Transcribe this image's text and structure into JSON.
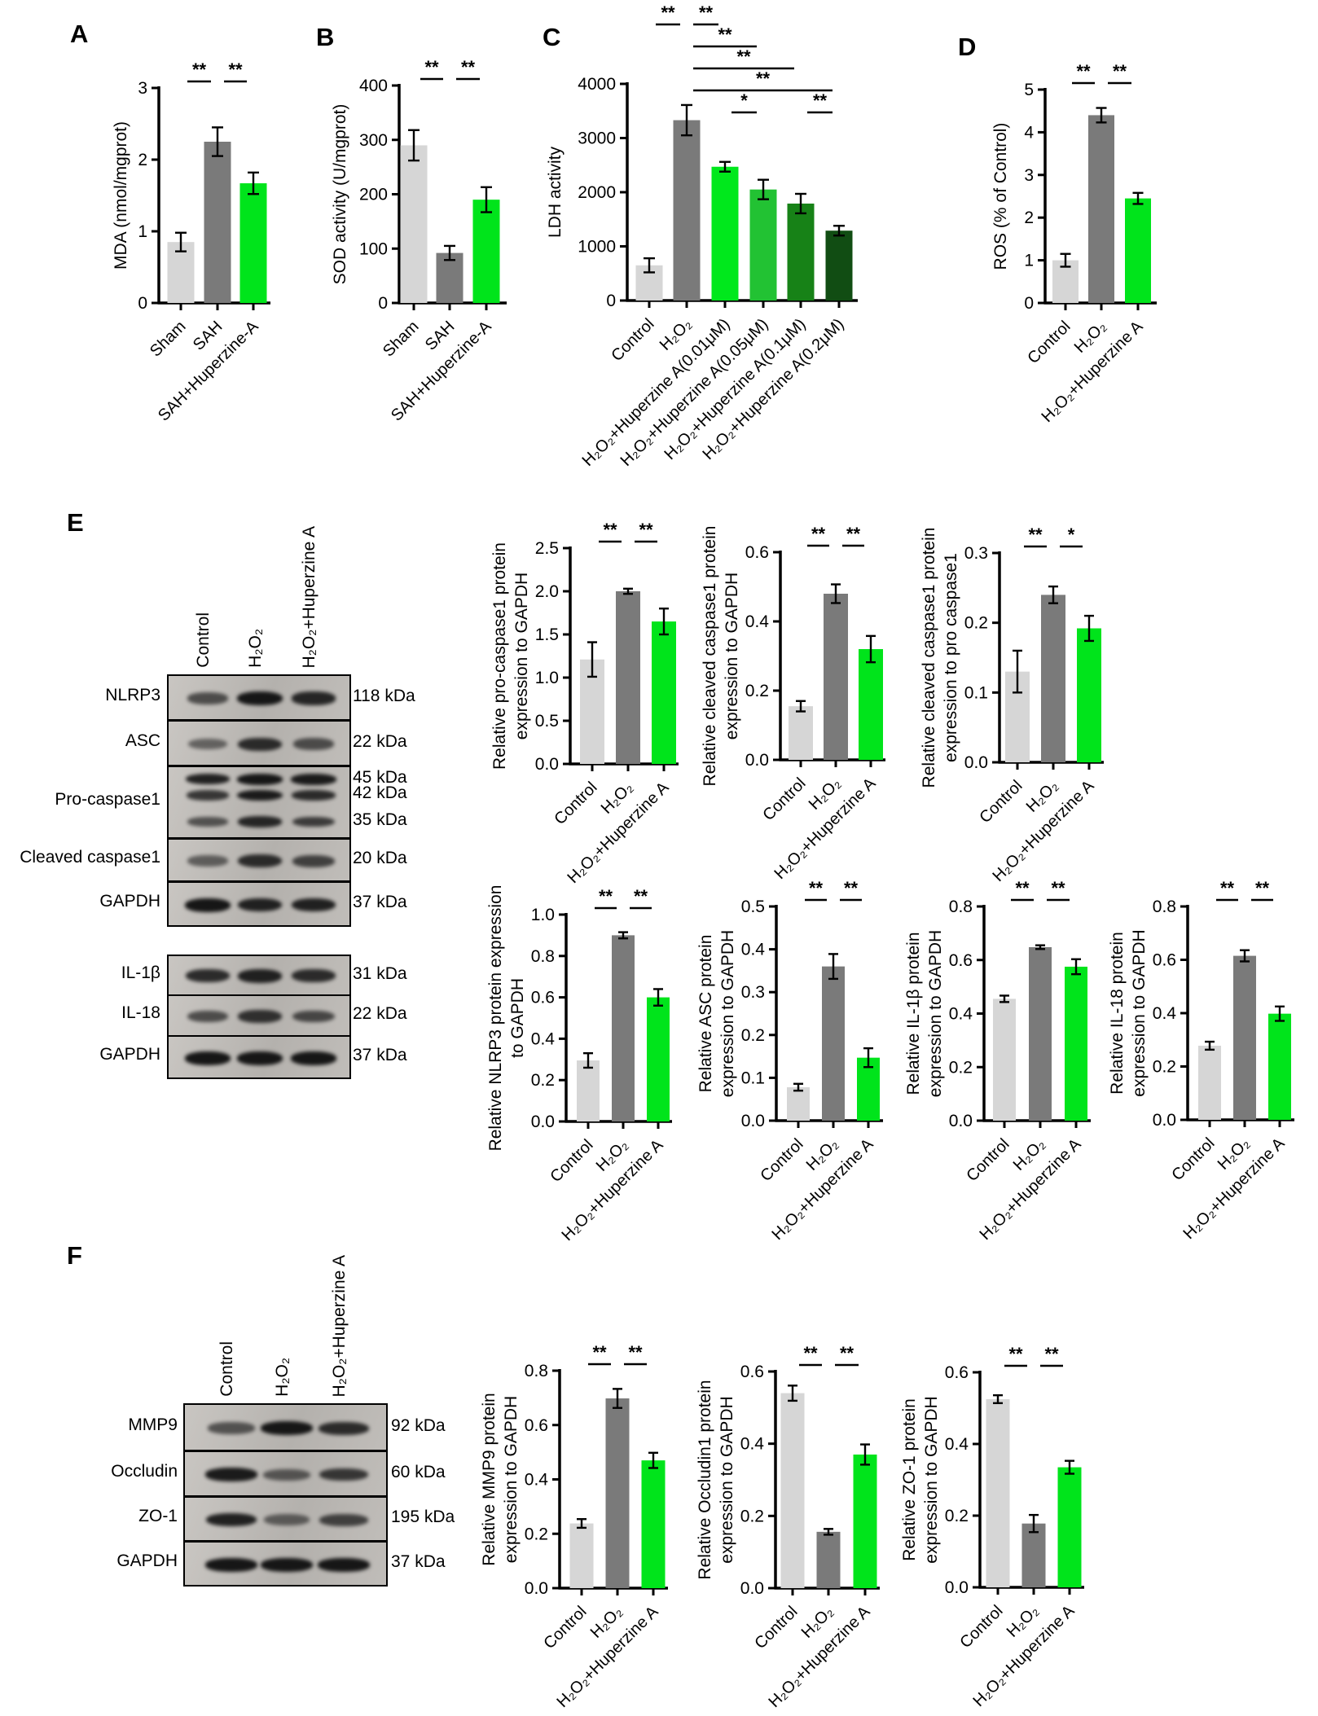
{
  "panel_letters": [
    "A",
    "B",
    "C",
    "D",
    "E",
    "F"
  ],
  "colors": {
    "bar_light_gray": "#d6d6d6",
    "bar_dark_gray": "#7a7a7a",
    "bar_green": "#00e41b",
    "axis_black": "#000000"
  },
  "chart_data": [
    {
      "id": "A",
      "type": "bar",
      "ylabel_lines": [
        "MDA (nmol/mgprot)"
      ],
      "categories": [
        "Sham",
        "SAH",
        "SAH+Huperzine-A"
      ],
      "values": [
        0.85,
        2.25,
        1.67
      ],
      "errors": [
        0.13,
        0.2,
        0.15
      ],
      "ylim": [
        0,
        3
      ],
      "yticks": [
        "0",
        "1",
        "2",
        "3"
      ],
      "bar_colors": [
        "#d6d6d6",
        "#7a7a7a",
        "#00e41b"
      ],
      "sig": [
        {
          "a": 0,
          "b": 1,
          "label": "**"
        },
        {
          "a": 1,
          "b": 2,
          "label": "**"
        }
      ]
    },
    {
      "id": "B",
      "type": "bar",
      "ylabel_lines": [
        "SOD activity (U/mgprot)"
      ],
      "categories": [
        "Sham",
        "SAH",
        "SAH+Huperzine-A"
      ],
      "values": [
        290,
        92,
        190
      ],
      "errors": [
        28,
        13,
        23
      ],
      "ylim": [
        0,
        400
      ],
      "yticks": [
        "0",
        "100",
        "200",
        "300",
        "400"
      ],
      "bar_colors": [
        "#d6d6d6",
        "#7a7a7a",
        "#00e41b"
      ],
      "sig": [
        {
          "a": 0,
          "b": 1,
          "label": "**"
        },
        {
          "a": 1,
          "b": 2,
          "label": "**"
        }
      ]
    },
    {
      "id": "C",
      "type": "bar",
      "ylabel_lines": [
        "LDH activity"
      ],
      "categories": [
        "Control",
        "H₂O₂",
        "H₂O₂+Huperzine A(0.01μM)",
        "H₂O₂+Huperzine A(0.05μM)",
        "H₂O₂+Huperzine A(0.1μM)",
        "H₂O₂+Huperzine A(0.2μM)"
      ],
      "values": [
        650,
        3330,
        2470,
        2050,
        1790,
        1290
      ],
      "errors": [
        130,
        280,
        90,
        180,
        180,
        90
      ],
      "ylim": [
        0,
        4000
      ],
      "yticks": [
        "0",
        "1000",
        "2000",
        "3000",
        "4000"
      ],
      "bar_colors": [
        "#d6d6d6",
        "#7a7a7a",
        "#00e81c",
        "#22c233",
        "#178217",
        "#114d13"
      ],
      "sig": [
        {
          "a": 0,
          "b": 1,
          "label": "**",
          "row": 0
        },
        {
          "a": 1,
          "b": 2,
          "label": "**",
          "row": 0
        },
        {
          "a": 1,
          "b": 3,
          "label": "**",
          "row": 1
        },
        {
          "a": 1,
          "b": 4,
          "label": "**",
          "row": 2
        },
        {
          "a": 1,
          "b": 5,
          "label": "**",
          "row": 3
        },
        {
          "a": 2,
          "b": 3,
          "label": "*",
          "row": 4
        },
        {
          "a": 4,
          "b": 5,
          "label": "**",
          "row": 4
        }
      ]
    },
    {
      "id": "D",
      "type": "bar",
      "ylabel_lines": [
        "ROS (% of Control)"
      ],
      "categories": [
        "Control",
        "H₂O₂",
        "H₂O₂+Huperzine A"
      ],
      "values": [
        1.0,
        4.4,
        2.45
      ],
      "errors": [
        0.15,
        0.17,
        0.13
      ],
      "ylim": [
        0,
        5
      ],
      "yticks": [
        "0",
        "1",
        "2",
        "3",
        "4",
        "5"
      ],
      "bar_colors": [
        "#d6d6d6",
        "#7a7a7a",
        "#00e41b"
      ],
      "sig": [
        {
          "a": 0,
          "b": 1,
          "label": "**"
        },
        {
          "a": 1,
          "b": 2,
          "label": "**"
        }
      ]
    },
    {
      "id": "E1",
      "type": "bar",
      "ylabel_lines": [
        "Relative pro-caspase1 protein",
        "expression to GAPDH"
      ],
      "categories": [
        "Control",
        "H₂O₂",
        "H₂O₂+Huperzine A"
      ],
      "values": [
        1.21,
        2.0,
        1.65
      ],
      "errors": [
        0.2,
        0.03,
        0.15
      ],
      "ylim": [
        0,
        2.5
      ],
      "yticks": [
        "0.0",
        "0.5",
        "1.0",
        "1.5",
        "2.0",
        "2.5"
      ],
      "bar_colors": [
        "#d6d6d6",
        "#7a7a7a",
        "#00e41b"
      ],
      "sig": [
        {
          "a": 0,
          "b": 1,
          "label": "**"
        },
        {
          "a": 1,
          "b": 2,
          "label": "**"
        }
      ]
    },
    {
      "id": "E2",
      "type": "bar",
      "ylabel_lines": [
        "Relative cleaved caspase1 protein",
        "expression to GAPDH"
      ],
      "categories": [
        "Control",
        "H₂O₂",
        "H₂O₂+Huperzine A"
      ],
      "values": [
        0.155,
        0.48,
        0.32
      ],
      "errors": [
        0.015,
        0.027,
        0.038
      ],
      "ylim": [
        0,
        0.6
      ],
      "yticks": [
        "0.0",
        "0.2",
        "0.4",
        "0.6"
      ],
      "bar_colors": [
        "#d6d6d6",
        "#7a7a7a",
        "#00e41b"
      ],
      "sig": [
        {
          "a": 0,
          "b": 1,
          "label": "**"
        },
        {
          "a": 1,
          "b": 2,
          "label": "**"
        }
      ]
    },
    {
      "id": "E3",
      "type": "bar",
      "ylabel_lines": [
        "Relative cleaved caspase1 protein",
        "expression to pro caspase1"
      ],
      "categories": [
        "Control",
        "H₂O₂",
        "H₂O₂+Huperzine A"
      ],
      "values": [
        0.13,
        0.24,
        0.192
      ],
      "errors": [
        0.03,
        0.012,
        0.018
      ],
      "ylim": [
        0,
        0.3
      ],
      "yticks": [
        "0.0",
        "0.1",
        "0.2",
        "0.3"
      ],
      "bar_colors": [
        "#d6d6d6",
        "#7a7a7a",
        "#00e41b"
      ],
      "sig": [
        {
          "a": 0,
          "b": 1,
          "label": "**"
        },
        {
          "a": 1,
          "b": 2,
          "label": "*"
        }
      ]
    },
    {
      "id": "E4",
      "type": "bar",
      "ylabel_lines": [
        "Relative NLRP3 protein expression",
        "to GAPDH"
      ],
      "categories": [
        "Control",
        "H₂O₂",
        "H₂O₂+Huperzine A"
      ],
      "values": [
        0.295,
        0.9,
        0.6
      ],
      "errors": [
        0.035,
        0.015,
        0.04
      ],
      "ylim": [
        0,
        1.0
      ],
      "yticks": [
        "0.0",
        "0.2",
        "0.4",
        "0.6",
        "0.8",
        "1.0"
      ],
      "bar_colors": [
        "#d6d6d6",
        "#7a7a7a",
        "#00e41b"
      ],
      "sig": [
        {
          "a": 0,
          "b": 1,
          "label": "**"
        },
        {
          "a": 1,
          "b": 2,
          "label": "**"
        }
      ]
    },
    {
      "id": "E5",
      "type": "bar",
      "ylabel_lines": [
        "Relative ASC protein",
        "expression to GAPDH"
      ],
      "categories": [
        "Control",
        "H₂O₂",
        "H₂O₂+Huperzine A"
      ],
      "values": [
        0.078,
        0.36,
        0.147
      ],
      "errors": [
        0.008,
        0.029,
        0.022
      ],
      "ylim": [
        0,
        0.5
      ],
      "yticks": [
        "0.0",
        "0.1",
        "0.2",
        "0.3",
        "0.4",
        "0.5"
      ],
      "bar_colors": [
        "#d6d6d6",
        "#7a7a7a",
        "#00e41b"
      ],
      "sig": [
        {
          "a": 0,
          "b": 1,
          "label": "**"
        },
        {
          "a": 1,
          "b": 2,
          "label": "**"
        }
      ]
    },
    {
      "id": "E6",
      "type": "bar",
      "ylabel_lines": [
        "Relative IL-1β protein",
        "expression to GAPDH"
      ],
      "categories": [
        "Control",
        "H₂O₂",
        "H₂O₂+Huperzine A"
      ],
      "values": [
        0.455,
        0.648,
        0.575
      ],
      "errors": [
        0.012,
        0.007,
        0.028
      ],
      "ylim": [
        0,
        0.8
      ],
      "yticks": [
        "0.0",
        "0.2",
        "0.4",
        "0.6",
        "0.8"
      ],
      "bar_colors": [
        "#d6d6d6",
        "#7a7a7a",
        "#00e41b"
      ],
      "sig": [
        {
          "a": 0,
          "b": 1,
          "label": "**"
        },
        {
          "a": 1,
          "b": 2,
          "label": "**"
        }
      ]
    },
    {
      "id": "E7",
      "type": "bar",
      "ylabel_lines": [
        "Relative IL-18 protein",
        "expression to GAPDH"
      ],
      "categories": [
        "Control",
        "H₂O₂",
        "H₂O₂+Huperzine A"
      ],
      "values": [
        0.278,
        0.615,
        0.398
      ],
      "errors": [
        0.015,
        0.021,
        0.027
      ],
      "ylim": [
        0,
        0.8
      ],
      "yticks": [
        "0.0",
        "0.2",
        "0.4",
        "0.6",
        "0.8"
      ],
      "bar_colors": [
        "#d6d6d6",
        "#7a7a7a",
        "#00e41b"
      ],
      "sig": [
        {
          "a": 0,
          "b": 1,
          "label": "**"
        },
        {
          "a": 1,
          "b": 2,
          "label": "**"
        }
      ]
    },
    {
      "id": "F1",
      "type": "bar",
      "ylabel_lines": [
        "Relative MMP9 protein",
        "expression to GAPDH"
      ],
      "categories": [
        "Control",
        "H₂O₂",
        "H₂O₂+Huperzine A"
      ],
      "values": [
        0.238,
        0.698,
        0.47
      ],
      "errors": [
        0.016,
        0.035,
        0.028
      ],
      "ylim": [
        0,
        0.8
      ],
      "yticks": [
        "0.0",
        "0.2",
        "0.4",
        "0.6",
        "0.8"
      ],
      "bar_colors": [
        "#d6d6d6",
        "#7a7a7a",
        "#00e41b"
      ],
      "sig": [
        {
          "a": 0,
          "b": 1,
          "label": "**"
        },
        {
          "a": 1,
          "b": 2,
          "label": "**"
        }
      ]
    },
    {
      "id": "F2",
      "type": "bar",
      "ylabel_lines": [
        "Relative Occludin1 protein",
        "expression to GAPDH"
      ],
      "categories": [
        "Control",
        "H₂O₂",
        "H₂O₂+Huperzine A"
      ],
      "values": [
        0.54,
        0.156,
        0.37
      ],
      "errors": [
        0.021,
        0.008,
        0.028
      ],
      "ylim": [
        0,
        0.6
      ],
      "yticks": [
        "0.0",
        "0.2",
        "0.4",
        "0.6"
      ],
      "bar_colors": [
        "#d6d6d6",
        "#7a7a7a",
        "#00e41b"
      ],
      "sig": [
        {
          "a": 0,
          "b": 1,
          "label": "**"
        },
        {
          "a": 1,
          "b": 2,
          "label": "**"
        }
      ]
    },
    {
      "id": "F3",
      "type": "bar",
      "ylabel_lines": [
        "Relative ZO-1 protein",
        "expression to GAPDH"
      ],
      "categories": [
        "Control",
        "H₂O₂",
        "H₂O₂+Huperzine A"
      ],
      "values": [
        0.525,
        0.178,
        0.335
      ],
      "errors": [
        0.011,
        0.024,
        0.018
      ],
      "ylim": [
        0,
        0.6
      ],
      "yticks": [
        "0.0",
        "0.2",
        "0.4",
        "0.6"
      ],
      "bar_colors": [
        "#d6d6d6",
        "#7a7a7a",
        "#00e41b"
      ],
      "sig": [
        {
          "a": 0,
          "b": 1,
          "label": "**"
        },
        {
          "a": 1,
          "b": 2,
          "label": "**"
        }
      ]
    }
  ],
  "blots": [
    {
      "panel": "E",
      "lane_labels": [
        "Control",
        "H₂O₂",
        "H₂O₂+Huperzine A"
      ],
      "rows": [
        {
          "protein": "NLRP3",
          "kda": [
            "118 kDa"
          ],
          "bands": [
            [
              0.5,
              1.0,
              0.85
            ]
          ]
        },
        {
          "protein": "ASC",
          "kda": [
            "22 kDa"
          ],
          "bands": [
            [
              0.3,
              0.8,
              0.5
            ]
          ]
        },
        {
          "protein": "Pro-caspase1",
          "kda": [
            "45 kDa",
            "42 kDa",
            "35 kDa"
          ],
          "bands": [
            [
              0.9,
              1.0,
              0.95
            ],
            [
              0.7,
              0.95,
              0.8
            ],
            [
              0.45,
              0.85,
              0.65
            ]
          ]
        },
        {
          "protein": "Cleaved caspase1",
          "kda": [
            "20 kDa"
          ],
          "bands": [
            [
              0.35,
              0.8,
              0.6
            ]
          ]
        },
        {
          "protein": "GAPDH",
          "kda": [
            "37 kDa"
          ],
          "bands": [
            [
              1.0,
              0.9,
              0.9
            ]
          ]
        },
        {
          "protein": "IL-1β",
          "kda": [
            "31 kDa"
          ],
          "bands": [
            [
              0.8,
              0.9,
              0.8
            ]
          ]
        },
        {
          "protein": "IL-18",
          "kda": [
            "22 kDa"
          ],
          "bands": [
            [
              0.5,
              0.75,
              0.55
            ]
          ]
        },
        {
          "protein": "GAPDH",
          "kda": [
            "37 kDa"
          ],
          "bands": [
            [
              1.0,
              1.0,
              1.0
            ]
          ]
        }
      ]
    },
    {
      "panel": "F",
      "lane_labels": [
        "Control",
        "H₂O₂",
        "H₂O₂+Huperzine A"
      ],
      "rows": [
        {
          "protein": "MMP9",
          "kda": [
            "92 kDa"
          ],
          "bands": [
            [
              0.45,
              1.0,
              0.8
            ]
          ]
        },
        {
          "protein": "Occludin",
          "kda": [
            "60 kDa"
          ],
          "bands": [
            [
              0.95,
              0.4,
              0.7
            ]
          ]
        },
        {
          "protein": "ZO-1",
          "kda": [
            "195 kDa"
          ],
          "bands": [
            [
              0.9,
              0.35,
              0.6
            ]
          ]
        },
        {
          "protein": "GAPDH",
          "kda": [
            "37 kDa"
          ],
          "bands": [
            [
              1.0,
              1.0,
              1.0
            ]
          ]
        }
      ]
    }
  ]
}
